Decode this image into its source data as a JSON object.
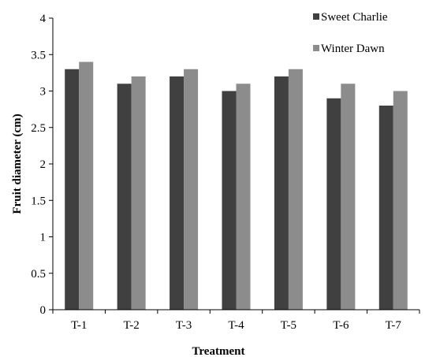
{
  "chart_data": {
    "type": "bar",
    "title": "",
    "xlabel": "Treatment",
    "ylabel": "Fruit diameter (cm)",
    "ylim": [
      0,
      4
    ],
    "yticks": [
      "0",
      "0.5",
      "1",
      "1.5",
      "2",
      "2.5",
      "3",
      "3.5",
      "4"
    ],
    "categories": [
      "T-1",
      "T-2",
      "T-3",
      "T-4",
      "T-5",
      "T-6",
      "T-7"
    ],
    "grid": false,
    "legend_position": "top-right",
    "series": [
      {
        "name": "Sweet Charlie",
        "color": "#404040",
        "values": [
          3.3,
          3.1,
          3.2,
          3.0,
          3.2,
          2.9,
          2.8
        ]
      },
      {
        "name": "Winter Dawn",
        "color": "#8c8c8c",
        "values": [
          3.4,
          3.2,
          3.3,
          3.1,
          3.3,
          3.1,
          3.0
        ]
      }
    ]
  }
}
